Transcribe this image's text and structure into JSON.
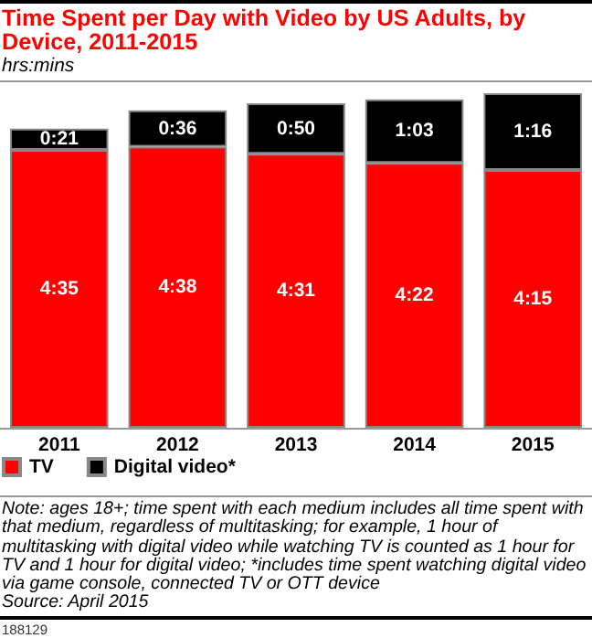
{
  "chart_data": {
    "type": "bar",
    "title": "Time Spent per Day with Video by US Adults, by Device, 2011-2015",
    "subtitle": "hrs:mins",
    "categories": [
      "2011",
      "2012",
      "2013",
      "2014",
      "2015"
    ],
    "series": [
      {
        "name": "TV",
        "color": "#ff0000",
        "values": [
          275,
          278,
          271,
          262,
          255
        ],
        "value_labels": [
          "4:35",
          "4:38",
          "4:31",
          "4:22",
          "4:15"
        ]
      },
      {
        "name": "Digital video*",
        "color": "#000000",
        "values": [
          21,
          36,
          50,
          63,
          76
        ],
        "value_labels": [
          "0:21",
          "0:36",
          "0:50",
          "1:03",
          "1:16"
        ]
      }
    ],
    "stacked": true,
    "tick_labels": "x",
    "legend": "bottom left",
    "annotations": [
      "Note: ages 18+;  time spent with each medium includes all time spent with that medium, regardless of multitasking; for example, 1 hour of multitasking with digital video while watching TV is counted as 1 hour for TV and 1 hour for digital video; *includes time spent watching digital video via game console, connected TV or OTT device",
      "Source: April 2015",
      "188129"
    ]
  }
}
